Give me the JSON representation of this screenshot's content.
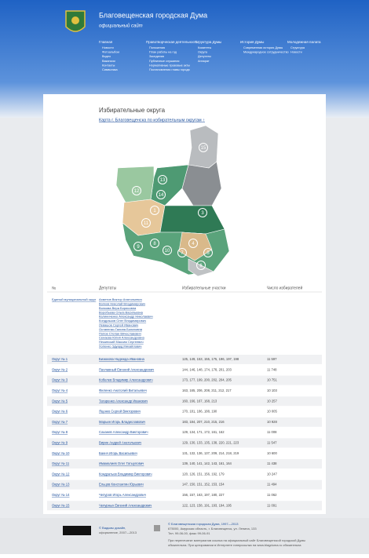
{
  "header": {
    "title": "Благовещенская городская Дума",
    "subtitle": "официальный сайт"
  },
  "nav": [
    {
      "title": "Главная",
      "items": [
        "Новости",
        "Фотоальбом",
        "Видео",
        "Вакансии",
        "Контакты",
        "Символика"
      ]
    },
    {
      "title": "Правотворческая деятельность",
      "items": [
        "Положения",
        "План работы на год",
        "Заседания",
        "Публичные слушания",
        "Нормативные правовые акты",
        "Постановления главы города"
      ]
    },
    {
      "title": "Структура Думы",
      "items": [
        "Комитеты",
        "Округа",
        "Депутаты",
        "Аппарат"
      ]
    },
    {
      "title": "История Думы",
      "items": [
        "Современная история Думы",
        "Международное сотрудничество"
      ]
    },
    {
      "title": "Молодежная палата",
      "items": [
        "Структура",
        "Новости"
      ]
    }
  ],
  "page": {
    "title": "Избирательные округа",
    "map_link": "Карта г. Благовещенска по избирательным округам ↑"
  },
  "map": {
    "labels": [
      "1",
      "2",
      "3",
      "4",
      "5",
      "6",
      "7",
      "8",
      "9",
      "10",
      "11",
      "12",
      "13",
      "14",
      "15"
    ]
  },
  "table": {
    "headers": [
      "№",
      "Депутаты",
      "Избирательные участки",
      "Число избирателей"
    ],
    "united": {
      "name": "Единый муниципальный округ",
      "deputies": [
        "Ахметов Виктор Анатольевич",
        "Волков Николай Владимирович",
        "Волкова Вера Борисовна",
        "Воробьева Ольга Васильевна",
        "Калиниченко Александр Николаевич",
        "Кондрашов Олег Владимирович",
        "Левашов Сергей Иванович",
        "Остапенко Галина Болатовна",
        "Попов Степан Вячеславович",
        "Сенаева Юлия Александровна",
        "Нежинский Максим Сергеевич",
        "Хопенко Эдуард Михайлович"
      ]
    },
    "rows": [
      [
        "Округ № 1",
        "Бизюкова Надежда Ивановна",
        "125, 149, 153, 155, 175, 196, 197, 198",
        "11 597"
      ],
      [
        "Округ № 2",
        "Пахлавный Евгений Александрович",
        "144, 146, 148, 174, 178, 201, 203",
        "11 748"
      ],
      [
        "Округ № 3",
        "Кобелев Владимир Александрович",
        "173, 177, 199, 200, 202, 204, 205",
        "10 751"
      ],
      [
        "Округ № 4",
        "Филенко Анатолий Витальевич",
        "163, 165, 206, 208, 211, 212, 217",
        "10 103"
      ],
      [
        "Округ № 5",
        "Татаренко Александр Иванович",
        "160, 166, 167, 168, 213",
        "10 257"
      ],
      [
        "Округ № 6",
        "Яценко Сергей Викторович",
        "170, 181, 186, 188, 190",
        "10 005"
      ],
      [
        "Округ № 7",
        "Марьин Игорь Владиславович",
        "183, 184, 207, 210, 215, 216",
        "10 928"
      ],
      [
        "Округ № 8",
        "Саханев Александр Викторович",
        "129, 134, 171, 172, 161, 162",
        "11 008"
      ],
      [
        "Округ № 9",
        "Вирин Андрей Анатольевич",
        "129, 130, 133, 135, 138, 220, 221, 223",
        "11 547"
      ],
      [
        "Округ № 10",
        "Баннч Игорь Васильевич",
        "131, 132, 136, 137, 209, 214, 218, 219",
        "10 600"
      ],
      [
        "Округ № 11",
        "Имамалиев Олег Гатыулович",
        "139, 140, 141, 142, 143, 161, 164",
        "11 438"
      ],
      [
        "Округ № 12",
        "Кондратьев Владимир Викторович",
        "120, 126, 151, 156, 192, 179",
        "10 247"
      ],
      [
        "Округ № 13",
        "Ельцов Константин Юрьевич",
        "147, 150, 151, 152, 153, 154",
        "11 494"
      ],
      [
        "Округ № 14",
        "Чепуров Игорь Александрович",
        "156, 157, 163, 197, 180, 227",
        "11 062"
      ],
      [
        "Округ № 15",
        "Чепурных Евгений Александрович",
        "122, 123, 158, 191, 193, 194, 195",
        "11 091"
      ]
    ]
  },
  "footer": {
    "design": "© Вадьмы дизайн,",
    "design2": "оформление, 2007—2013",
    "copyright": "© Благовещенская городская Дума, 1997—2013",
    "address": "675000, Амурская область, г. Благовещенск, ул. Ленина, 133",
    "phone": "Тел. 99-06-00, факс 99-06-91",
    "note1": "При перепечатке материалов ссылка на официальный сайт Благовещенской городской Думы",
    "note2": "обязательна. При цитировании в Интернете гиперссылка на www.blagduma.ru обязательна"
  }
}
